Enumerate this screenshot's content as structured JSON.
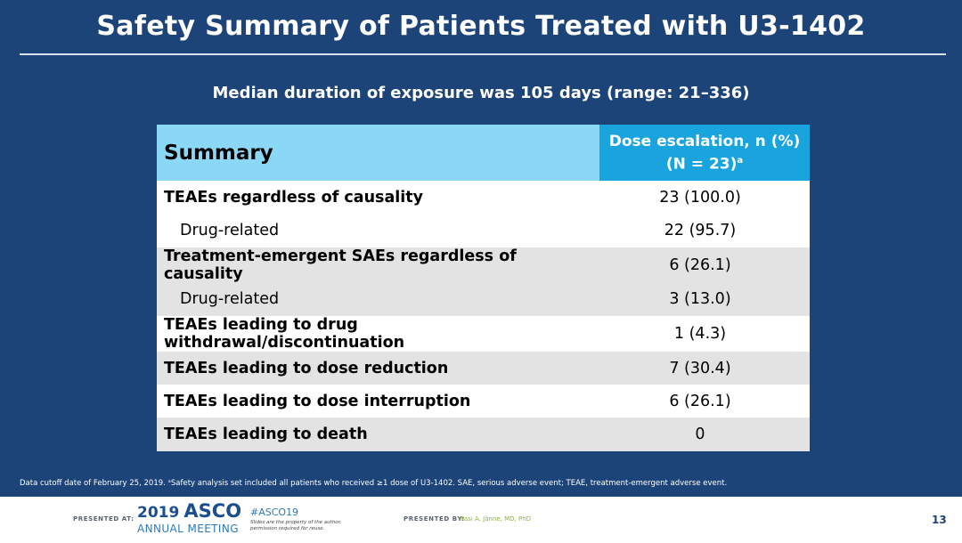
{
  "title": "Safety Summary of Patients Treated with U3-1402",
  "subtitle": "Median duration of exposure was 105 days (range: 21–336)",
  "table": {
    "header_summary": "Summary",
    "header_dose_line1": "Dose escalation, n (%)",
    "header_dose_line2": "(N = 23)",
    "header_dose_sup": "a",
    "rows": [
      {
        "label": "TEAEs regardless of causality",
        "value": "23 (100.0)"
      },
      {
        "label": "Drug-related",
        "value": "22 (95.7)"
      },
      {
        "label": "Treatment-emergent SAEs regardless of causality",
        "value": "6 (26.1)"
      },
      {
        "label": "Drug-related",
        "value": "3 (13.0)"
      },
      {
        "label": "TEAEs leading to drug withdrawal/discontinuation",
        "value": "1 (4.3)"
      },
      {
        "label": "TEAEs leading to dose reduction",
        "value": "7 (30.4)"
      },
      {
        "label": "TEAEs leading to dose interruption",
        "value": "6 (26.1)"
      },
      {
        "label": "TEAEs leading to death",
        "value": "0"
      }
    ]
  },
  "footnote": "Data cutoff date of February 25, 2019. ᵃSafety analysis set included all patients who received ≥1 dose of U3-1402. SAE, serious adverse event; TEAE, treatment-emergent adverse event.",
  "footer": {
    "presented_at": "PRESENTED AT:",
    "logo_year": "2019",
    "logo_brand": "ASCO",
    "logo_sub": "ANNUAL MEETING",
    "hashtag": "#ASCO19",
    "rights": "Slides are the property of the author, permission required for reuse.",
    "presented_by": "PRESENTED BY:",
    "presenter": "Pasi A. Jänne, MD, PhD",
    "page_number": "13"
  },
  "colors": {
    "background": "#1d4479",
    "header_summary": "#8ad8f5",
    "header_dose": "#1aa4de",
    "row_gray": "#e3e3e3"
  }
}
